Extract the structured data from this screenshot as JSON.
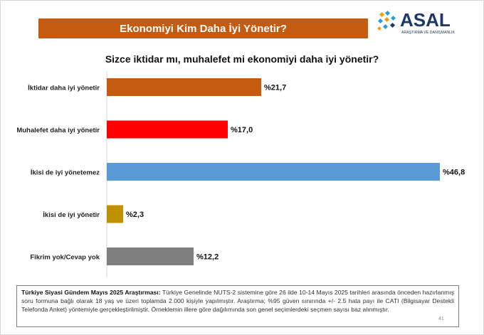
{
  "header": {
    "title": "Ekonomiyi Kim Daha İyi Yönetir?",
    "title_bg": "#c55a11"
  },
  "logo": {
    "name": "ASAL",
    "tagline": "ARAŞTIRMA VE DANIŞMANLIK",
    "colors": [
      "#f39c12",
      "#2c9fd9",
      "#1f3864"
    ]
  },
  "chart_data": {
    "type": "bar",
    "orientation": "horizontal",
    "title": "Sizce iktidar mı, muhalefet mi ekonomiyi daha iyi yönetir?",
    "categories": [
      "İktidar daha iyi yönetir",
      "Muhalefet daha iyi yönetir",
      "İkisi de iyi yönetemez",
      "İkisi de iyi yönetir",
      "Fikrim yok/Cevap yok"
    ],
    "values": [
      21.7,
      17.0,
      46.8,
      2.3,
      12.2
    ],
    "value_labels": [
      "%21,7",
      "%17,0",
      "%46,8",
      "%2,3",
      "%12,2"
    ],
    "colors": [
      "#c55a11",
      "#ff0000",
      "#5b9bd5",
      "#bf9000",
      "#7f7f7f"
    ],
    "xlim": [
      0,
      50
    ],
    "grid": false,
    "legend": "none"
  },
  "footer": {
    "note_title": "Türkiye Siyasi Gündem Mayıs 2025 Araştırması:",
    "note_text": " Türkiye Genelinde NUTS-2 sistemine göre 26 ilde 10-14 Mayıs 2025 tarihleri arasında önceden hazırlanmış soru formuna bağlı olarak 18 yaş ve üzeri toplamda 2.000 kişiyle yapılmıştır. Araştırma; %95 güven sınırında +/- 2.5 hata payı ile CATI (Bilgisayar Destekli Telefonda Anket) yöntemiyle gerçekleştirilmiştir. Örneklemin illere göre dağılımında son genel seçimlerdeki seçmen sayısı baz alınmıştır.",
    "page_number": "41"
  }
}
